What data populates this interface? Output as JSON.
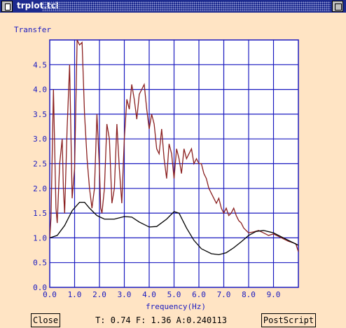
{
  "window": {
    "title": "trplot.tcl"
  },
  "toolbar": {
    "close_label": "Close",
    "status": "T: 0.74 F: 1.36 A:0.240113",
    "postscript_label": "PostScript"
  },
  "chart_data": {
    "type": "line",
    "title": "",
    "ylabel": "Transfer",
    "xlabel": "frequency(Hz)",
    "xlim": [
      0,
      10
    ],
    "ylim": [
      0,
      5
    ],
    "grid": true,
    "x_ticks": [
      "0.0",
      "1.0",
      "2.0",
      "3.0",
      "4.0",
      "5.0",
      "6.0",
      "7.0",
      "8.0",
      "9.0"
    ],
    "y_ticks": [
      "0.0",
      "0.5",
      "1.0",
      "1.5",
      "2.0",
      "2.5",
      "3.0",
      "3.5",
      "4.0",
      "4.5"
    ],
    "series": [
      {
        "color": "#8b2020",
        "x": [
          0,
          0.05,
          0.15,
          0.25,
          0.3,
          0.4,
          0.5,
          0.55,
          0.6,
          0.7,
          0.8,
          0.9,
          1.0,
          1.1,
          1.2,
          1.3,
          1.4,
          1.5,
          1.6,
          1.7,
          1.8,
          1.9,
          2.0,
          2.05,
          2.1,
          2.2,
          2.3,
          2.4,
          2.5,
          2.6,
          2.7,
          2.8,
          2.9,
          3.0,
          3.1,
          3.2,
          3.3,
          3.4,
          3.5,
          3.6,
          3.7,
          3.8,
          3.9,
          4.0,
          4.1,
          4.2,
          4.3,
          4.4,
          4.5,
          4.6,
          4.7,
          4.8,
          4.9,
          5.0,
          5.1,
          5.2,
          5.3,
          5.4,
          5.5,
          5.6,
          5.7,
          5.8,
          5.9,
          6.0,
          6.1,
          6.2,
          6.3,
          6.4,
          6.5,
          6.6,
          6.7,
          6.8,
          6.9,
          7.0,
          7.1,
          7.2,
          7.3,
          7.4,
          7.5,
          7.6,
          7.7,
          7.8,
          7.9,
          8.0,
          8.2,
          8.4,
          8.6,
          8.8,
          9.0,
          9.2,
          9.4,
          9.6,
          9.8,
          9.9,
          10.0
        ],
        "y": [
          1.0,
          1.4,
          4.0,
          1.6,
          1.3,
          2.5,
          3.0,
          2.0,
          1.5,
          3.2,
          4.5,
          1.8,
          2.4,
          5.0,
          4.9,
          4.95,
          3.5,
          2.6,
          2.0,
          1.6,
          2.0,
          3.5,
          2.4,
          1.6,
          1.5,
          2.0,
          3.3,
          3.0,
          1.7,
          2.0,
          3.3,
          2.4,
          1.7,
          3.0,
          3.8,
          3.6,
          4.1,
          3.8,
          3.4,
          3.9,
          4.0,
          4.1,
          3.6,
          3.2,
          3.5,
          3.3,
          2.8,
          2.7,
          3.2,
          2.6,
          2.2,
          2.9,
          2.7,
          2.2,
          2.8,
          2.6,
          2.3,
          2.8,
          2.6,
          2.7,
          2.8,
          2.5,
          2.6,
          2.5,
          2.5,
          2.3,
          2.2,
          2.0,
          1.9,
          1.8,
          1.7,
          1.8,
          1.6,
          1.5,
          1.6,
          1.45,
          1.5,
          1.6,
          1.45,
          1.35,
          1.3,
          1.2,
          1.15,
          1.1,
          1.12,
          1.15,
          1.1,
          1.05,
          1.08,
          1.03,
          0.98,
          0.93,
          0.9,
          0.88,
          0.72
        ]
      },
      {
        "color": "#000000",
        "x": [
          0,
          0.3,
          0.6,
          0.9,
          1.2,
          1.4,
          1.6,
          1.9,
          2.2,
          2.6,
          3.0,
          3.3,
          3.6,
          4.0,
          4.3,
          4.7,
          5.0,
          5.2,
          5.5,
          5.8,
          6.1,
          6.5,
          6.8,
          7.1,
          7.4,
          7.7,
          8.0,
          8.3,
          8.6,
          9.0,
          9.4,
          9.8,
          10.0
        ],
        "y": [
          1.0,
          1.05,
          1.25,
          1.55,
          1.72,
          1.72,
          1.6,
          1.45,
          1.38,
          1.38,
          1.43,
          1.42,
          1.32,
          1.22,
          1.23,
          1.38,
          1.53,
          1.5,
          1.2,
          0.95,
          0.78,
          0.68,
          0.66,
          0.7,
          0.8,
          0.92,
          1.05,
          1.13,
          1.15,
          1.1,
          1.0,
          0.9,
          0.85
        ]
      }
    ]
  }
}
